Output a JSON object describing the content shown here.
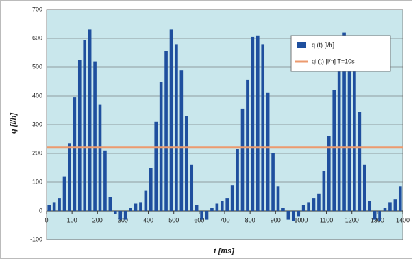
{
  "chart_data": {
    "type": "bar",
    "xlabel": "t [ms]",
    "ylabel": "q [l/h]",
    "xlim": [
      0,
      1400
    ],
    "ylim": [
      -100,
      700
    ],
    "xticks": [
      0,
      100,
      200,
      300,
      400,
      500,
      600,
      700,
      800,
      900,
      1000,
      1100,
      1200,
      1300,
      1400
    ],
    "yticks": [
      -100,
      0,
      100,
      200,
      300,
      400,
      500,
      600,
      700
    ],
    "grid": true,
    "legend": "upper right",
    "background": "#c9e7ec",
    "series": [
      {
        "name": "q (t) [l/h]",
        "type": "bar",
        "color": "#1f4f9e",
        "x": [
          10,
          30,
          50,
          70,
          90,
          110,
          130,
          150,
          170,
          190,
          210,
          230,
          250,
          270,
          290,
          310,
          330,
          350,
          370,
          390,
          410,
          430,
          450,
          470,
          490,
          510,
          530,
          550,
          570,
          590,
          610,
          630,
          650,
          670,
          690,
          710,
          730,
          750,
          770,
          790,
          810,
          830,
          850,
          870,
          890,
          910,
          930,
          950,
          970,
          990,
          1010,
          1030,
          1050,
          1070,
          1090,
          1110,
          1130,
          1150,
          1170,
          1190,
          1210,
          1230,
          1250,
          1270,
          1290,
          1310,
          1330,
          1350,
          1370,
          1390
        ],
        "values": [
          20,
          30,
          45,
          120,
          235,
          395,
          525,
          595,
          630,
          520,
          370,
          210,
          50,
          -10,
          -30,
          -30,
          10,
          25,
          30,
          70,
          150,
          310,
          450,
          555,
          630,
          580,
          490,
          330,
          160,
          20,
          -30,
          -30,
          10,
          25,
          35,
          45,
          90,
          215,
          355,
          455,
          605,
          610,
          580,
          410,
          200,
          85,
          10,
          -30,
          -35,
          -20,
          20,
          30,
          45,
          60,
          140,
          260,
          420,
          520,
          620,
          600,
          515,
          345,
          160,
          35,
          -30,
          -35,
          10,
          30,
          40,
          85
        ]
      },
      {
        "name": "qi (t) [l/h] T=10s",
        "type": "line",
        "color": "#ec9a6e",
        "x": [
          0,
          1400
        ],
        "values": [
          222,
          222
        ]
      }
    ]
  }
}
